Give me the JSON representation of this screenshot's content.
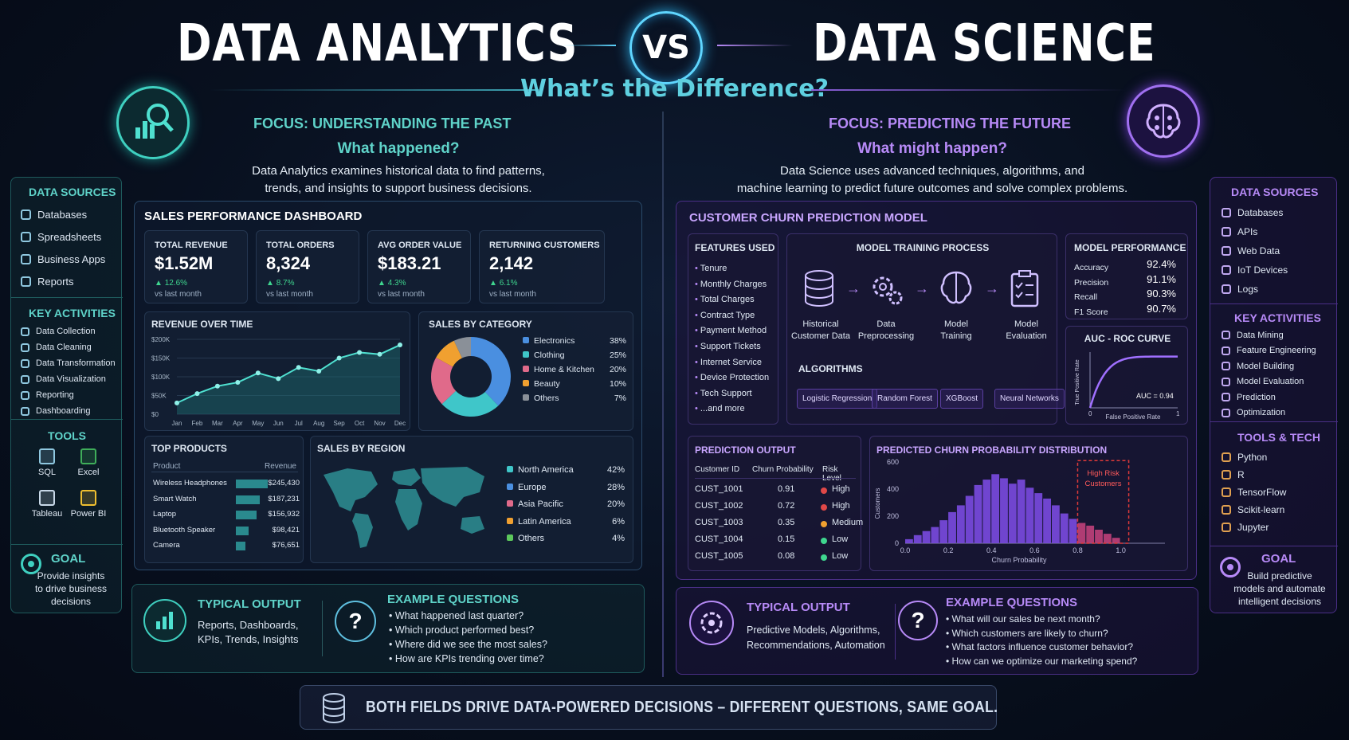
{
  "header": {
    "left_title": "DATA ANALYTICS",
    "vs": "VS",
    "right_title": "DATA SCIENCE",
    "subtitle": "What’s the Difference?"
  },
  "analytics": {
    "focus": "FOCUS: UNDERSTANDING THE PAST",
    "question": "What happened?",
    "desc_line1": "Data Analytics examines historical data to find patterns,",
    "desc_line2": "trends, and insights to support business decisions.",
    "dashboard_title": "SALES PERFORMANCE DASHBOARD",
    "kpis": [
      {
        "label": "TOTAL REVENUE",
        "value": "$1.52M",
        "delta": "12.6%",
        "sub": "vs last month"
      },
      {
        "label": "TOTAL ORDERS",
        "value": "8,324",
        "delta": "8.7%",
        "sub": "vs last month"
      },
      {
        "label": "AVG ORDER VALUE",
        "value": "$183.21",
        "delta": "4.3%",
        "sub": "vs last month"
      },
      {
        "label": "RETURNING CUSTOMERS",
        "value": "2,142",
        "delta": "6.1%",
        "sub": "vs last month"
      }
    ],
    "revenue_title": "REVENUE OVER TIME",
    "category_title": "SALES BY CATEGORY",
    "categories": [
      {
        "name": "Electronics",
        "pct": "38%",
        "color": "#4a8fe0"
      },
      {
        "name": "Clothing",
        "pct": "25%",
        "color": "#3fc6c9"
      },
      {
        "name": "Home & Kitchen",
        "pct": "20%",
        "color": "#e06a8a"
      },
      {
        "name": "Beauty",
        "pct": "10%",
        "color": "#f0a030"
      },
      {
        "name": "Others",
        "pct": "7%",
        "color": "#8a9098"
      }
    ],
    "top_products_title": "TOP PRODUCTS",
    "top_products_headers": [
      "Product",
      "Revenue"
    ],
    "top_products": [
      {
        "name": "Wireless Headphones",
        "value": "$245,430",
        "frac": 1.0
      },
      {
        "name": "Smart Watch",
        "value": "$187,231",
        "frac": 0.76
      },
      {
        "name": "Laptop",
        "value": "$156,932",
        "frac": 0.64
      },
      {
        "name": "Bluetooth Speaker",
        "value": "$98,421",
        "frac": 0.4
      },
      {
        "name": "Camera",
        "value": "$76,651",
        "frac": 0.31
      }
    ],
    "region_title": "SALES BY REGION",
    "regions": [
      {
        "name": "North America",
        "pct": "42%",
        "color": "#3fc6c9"
      },
      {
        "name": "Europe",
        "pct": "28%",
        "color": "#4a8fe0"
      },
      {
        "name": "Asia Pacific",
        "pct": "20%",
        "color": "#e06a8a"
      },
      {
        "name": "Latin America",
        "pct": "6%",
        "color": "#f0a030"
      },
      {
        "name": "Others",
        "pct": "4%",
        "color": "#5cc85c"
      }
    ],
    "output_title": "TYPICAL OUTPUT",
    "output_line1": "Reports, Dashboards,",
    "output_line2": "KPIs, Trends, Insights",
    "questions_title": "EXAMPLE QUESTIONS",
    "questions": [
      "What happened last quarter?",
      "Which product performed best?",
      "Where did we see the most sales?",
      "How are KPIs trending over time?"
    ]
  },
  "science": {
    "focus": "FOCUS: PREDICTING THE FUTURE",
    "question": "What might happen?",
    "desc_line1": "Data Science uses advanced techniques, algorithms, and",
    "desc_line2": "machine learning to predict future outcomes and solve complex problems.",
    "model_title": "CUSTOMER CHURN PREDICTION MODEL",
    "features_title": "FEATURES USED",
    "features": [
      "Tenure",
      "Monthly Charges",
      "Total Charges",
      "Contract Type",
      "Payment Method",
      "Support Tickets",
      "Internet Service",
      "Device Protection",
      "Tech Support",
      "...and more"
    ],
    "training_title": "MODEL TRAINING PROCESS",
    "steps": [
      {
        "line1": "Historical",
        "line2": "Customer Data"
      },
      {
        "line1": "Data",
        "line2": "Preprocessing"
      },
      {
        "line1": "Model",
        "line2": "Training"
      },
      {
        "line1": "Model",
        "line2": "Evaluation"
      }
    ],
    "algorithms_title": "ALGORITHMS",
    "algorithms": [
      "Logistic Regression",
      "Random Forest",
      "XGBoost",
      "Neural Networks"
    ],
    "performance_title": "MODEL PERFORMANCE",
    "performance": [
      {
        "label": "Accuracy",
        "value": "92.4%"
      },
      {
        "label": "Precision",
        "value": "91.1%"
      },
      {
        "label": "Recall",
        "value": "90.3%"
      },
      {
        "label": "F1 Score",
        "value": "90.7%"
      }
    ],
    "roc_title": "AUC - ROC CURVE",
    "roc_ylabel": "True Positive Rate",
    "roc_xlabel": "False Positive Rate",
    "roc_auc": "AUC = 0.94",
    "roc_x0": "0",
    "roc_x1": "1",
    "prediction_title": "PREDICTION OUTPUT",
    "prediction_headers": [
      "Customer ID",
      "Churn Probability",
      "Risk Level"
    ],
    "predictions": [
      {
        "id": "CUST_1001",
        "prob": "0.91",
        "risk": "High",
        "color": "#e04848"
      },
      {
        "id": "CUST_1002",
        "prob": "0.72",
        "risk": "High",
        "color": "#e04848"
      },
      {
        "id": "CUST_1003",
        "prob": "0.35",
        "risk": "Medium",
        "color": "#f0a030"
      },
      {
        "id": "CUST_1004",
        "prob": "0.15",
        "risk": "Low",
        "color": "#3fd68f"
      },
      {
        "id": "CUST_1005",
        "prob": "0.08",
        "risk": "Low",
        "color": "#3fd68f"
      }
    ],
    "dist_title": "PREDICTED CHURN PROBABILITY DISTRIBUTION",
    "dist_ylabel": "Customers",
    "dist_xlabel": "Churn Probability",
    "high_risk_line1": "High Risk",
    "high_risk_line2": "Customers",
    "output_title": "TYPICAL OUTPUT",
    "output_line1": "Predictive Models, Algorithms,",
    "output_line2": "Recommendations, Automation",
    "questions_title": "EXAMPLE QUESTIONS",
    "questions": [
      "What will our sales be next month?",
      "Which customers are likely to churn?",
      "What factors influence customer behavior?",
      "How can we optimize our marketing spend?"
    ]
  },
  "left_side": {
    "sources_title": "DATA SOURCES",
    "sources": [
      "Databases",
      "Spreadsheets",
      "Business Apps",
      "Reports"
    ],
    "activities_title": "KEY ACTIVITIES",
    "activities": [
      "Data Collection",
      "Data Cleaning",
      "Data Transformation",
      "Data Visualization",
      "Reporting",
      "Dashboarding"
    ],
    "tools_title": "TOOLS",
    "tools": [
      "SQL",
      "Excel",
      "Tableau",
      "Power BI"
    ],
    "goal_title": "GOAL",
    "goal_line1": "Provide insights",
    "goal_line2": "to drive business",
    "goal_line3": "decisions"
  },
  "right_side": {
    "sources_title": "DATA SOURCES",
    "sources": [
      "Databases",
      "APIs",
      "Web Data",
      "IoT Devices",
      "Logs"
    ],
    "activities_title": "KEY ACTIVITIES",
    "activities": [
      "Data Mining",
      "Feature Engineering",
      "Model Building",
      "Model Evaluation",
      "Prediction",
      "Optimization"
    ],
    "tools_title": "TOOLS & TECH",
    "tools": [
      "Python",
      "R",
      "TensorFlow",
      "Scikit-learn",
      "Jupyter"
    ],
    "goal_title": "GOAL",
    "goal_line1": "Build predictive",
    "goal_line2": "models and automate",
    "goal_line3": "intelligent decisions"
  },
  "footer": {
    "text": "BOTH FIELDS DRIVE DATA-POWERED DECISIONS – DIFFERENT QUESTIONS, SAME GOAL."
  },
  "chart_data": [
    {
      "type": "line",
      "title": "REVENUE OVER TIME",
      "categories": [
        "Jan",
        "Feb",
        "Mar",
        "Apr",
        "May",
        "Jun",
        "Jul",
        "Aug",
        "Sep",
        "Oct",
        "Nov",
        "Dec"
      ],
      "values": [
        30,
        55,
        75,
        85,
        110,
        95,
        125,
        115,
        150,
        165,
        160,
        185
      ],
      "yticks": [
        "$0",
        "$50K",
        "$100K",
        "$150K",
        "$200K"
      ],
      "ylim": [
        0,
        200
      ]
    },
    {
      "type": "pie",
      "title": "SALES BY CATEGORY",
      "categories": [
        "Electronics",
        "Clothing",
        "Home & Kitchen",
        "Beauty",
        "Others"
      ],
      "values": [
        38,
        25,
        20,
        10,
        7
      ]
    },
    {
      "type": "bar",
      "title": "PREDICTED CHURN PROBABILITY DISTRIBUTION",
      "xlabel": "Churn Probability",
      "ylabel": "Customers",
      "yticks": [
        "0",
        "200",
        "400",
        "600"
      ],
      "xticks": [
        "0.0",
        "0.2",
        "0.4",
        "0.6",
        "0.8",
        "1.0"
      ],
      "ylim": [
        0,
        600
      ],
      "xlim": [
        0,
        1.0
      ],
      "bins": [
        0.0,
        0.04,
        0.08,
        0.12,
        0.16,
        0.2,
        0.24,
        0.28,
        0.32,
        0.36,
        0.4,
        0.44,
        0.48,
        0.52,
        0.56,
        0.6,
        0.64,
        0.68,
        0.72,
        0.76,
        0.8,
        0.84,
        0.88,
        0.92,
        0.96
      ],
      "values": [
        30,
        60,
        90,
        120,
        170,
        230,
        280,
        350,
        430,
        470,
        510,
        480,
        440,
        470,
        410,
        370,
        330,
        280,
        220,
        180,
        150,
        130,
        100,
        70,
        40
      ]
    },
    {
      "type": "line",
      "title": "AUC - ROC CURVE",
      "auc": 0.94
    }
  ]
}
